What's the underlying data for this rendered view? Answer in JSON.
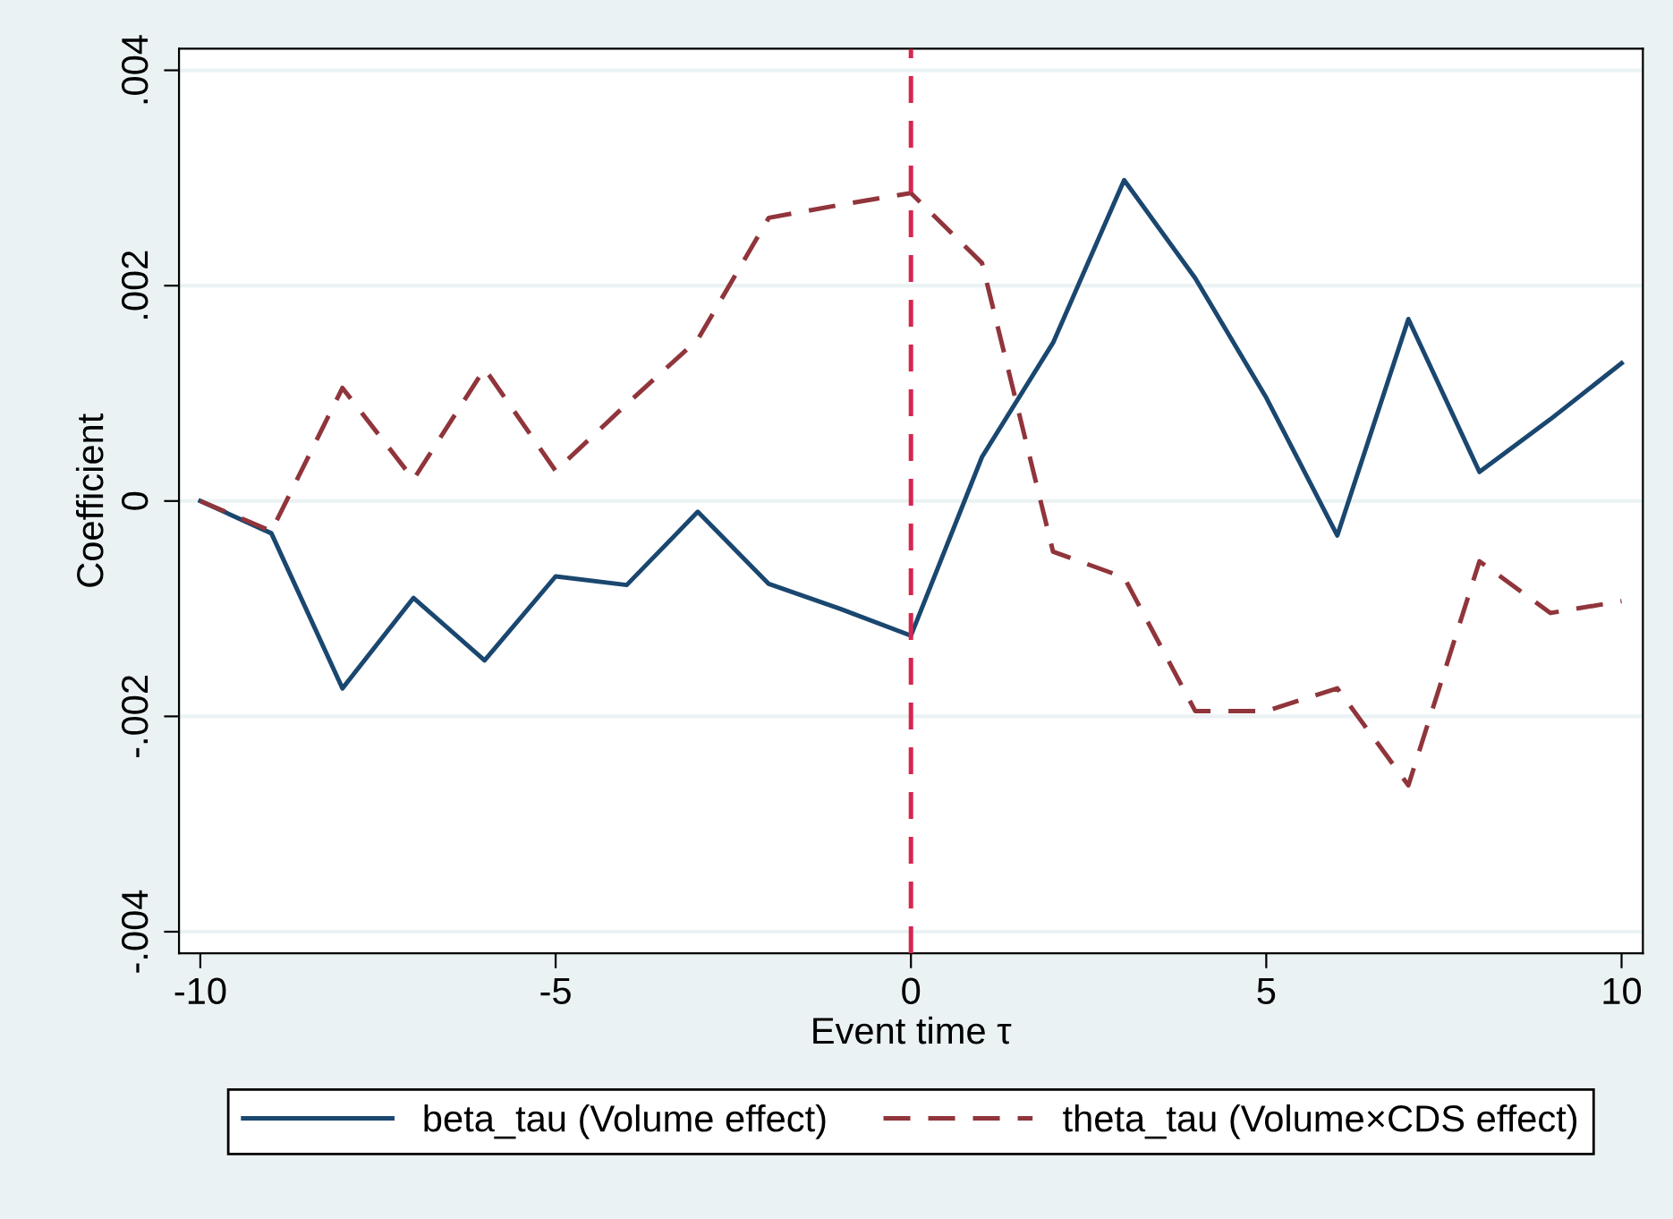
{
  "chart_data": {
    "type": "line",
    "xlabel": "Event time τ",
    "ylabel": "Coefficient",
    "x": [
      -10,
      -9,
      -8,
      -7,
      -6,
      -5,
      -4,
      -3,
      -2,
      -1,
      0,
      1,
      2,
      3,
      4,
      5,
      6,
      7,
      8,
      9,
      10
    ],
    "series": [
      {
        "name": "beta_tau (Volume effect)",
        "color": "#1a476f",
        "line_style": "solid",
        "values": [
          0,
          -0.0003,
          -0.00174,
          -0.0009,
          -0.00148,
          -0.0007,
          -0.00078,
          -0.0001,
          -0.00077,
          -0.001,
          -0.00125,
          0.00041,
          0.00147,
          0.00298,
          0.00207,
          0.00096,
          -0.00032,
          0.00169,
          0.00027,
          0.00076,
          0.00128
        ]
      },
      {
        "name": "theta_tau (Volume×CDS effect)",
        "color": "#90353b",
        "line_style": "dashed",
        "values": [
          0,
          -0.00028,
          0.00105,
          0.0002,
          0.00123,
          0.00028,
          0.0009,
          0.0015,
          0.00263,
          0.00275,
          0.00286,
          0.00221,
          -0.00047,
          -0.00071,
          -0.00195,
          -0.00195,
          -0.00174,
          -0.00264,
          -0.00056,
          -0.00104,
          -0.00093
        ]
      }
    ],
    "xlim": [
      -10.3,
      10.3
    ],
    "ylim": [
      -0.0042,
      0.0042
    ],
    "xticks": [
      -10,
      -5,
      0,
      5,
      10
    ],
    "yticks": [
      {
        "value": -0.004,
        "label": "-.004"
      },
      {
        "value": -0.002,
        "label": "-.002"
      },
      0,
      {
        "value": 0.002,
        "label": ".002"
      },
      {
        "value": 0.004,
        "label": ".004"
      }
    ],
    "ref_lines": [
      {
        "axis": "x",
        "value": 0,
        "label": null,
        "color": "#d7264f",
        "line_style": "dashed"
      }
    ],
    "grid": "y",
    "legend": "bottom",
    "marker": "none"
  }
}
